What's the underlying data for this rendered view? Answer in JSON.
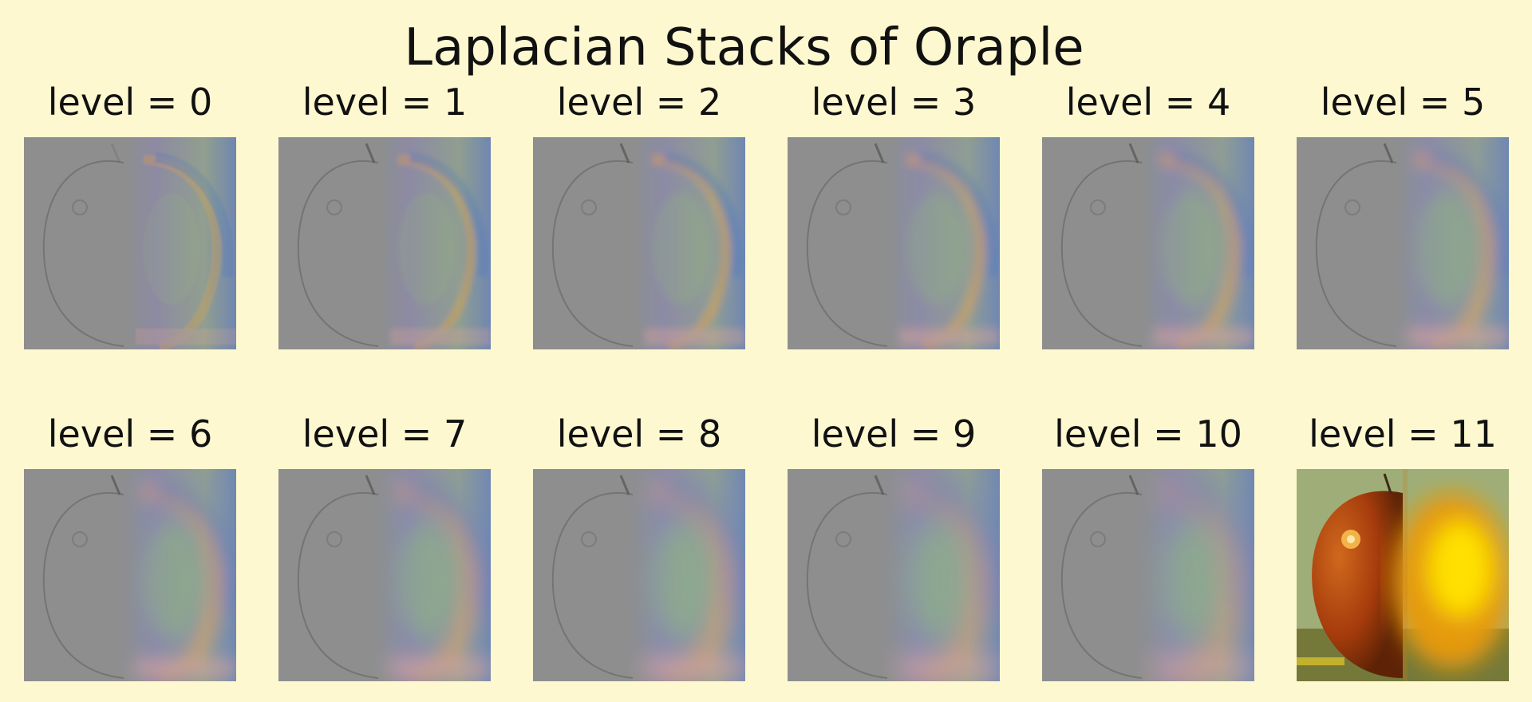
{
  "title": "Laplacian Stacks of Oraple",
  "panels": [
    {
      "label": "level = 0"
    },
    {
      "label": "level = 1"
    },
    {
      "label": "level = 2"
    },
    {
      "label": "level = 3"
    },
    {
      "label": "level = 4"
    },
    {
      "label": "level = 5"
    },
    {
      "label": "level = 6"
    },
    {
      "label": "level = 7"
    },
    {
      "label": "level = 8"
    },
    {
      "label": "level = 9"
    },
    {
      "label": "level = 10"
    },
    {
      "label": "level = 11"
    }
  ],
  "colors": {
    "background": "#fdf8d0",
    "detail_gray": "#8f8f8f",
    "apple_red": "#b4420f",
    "orange_yellow": "#f7d000"
  }
}
